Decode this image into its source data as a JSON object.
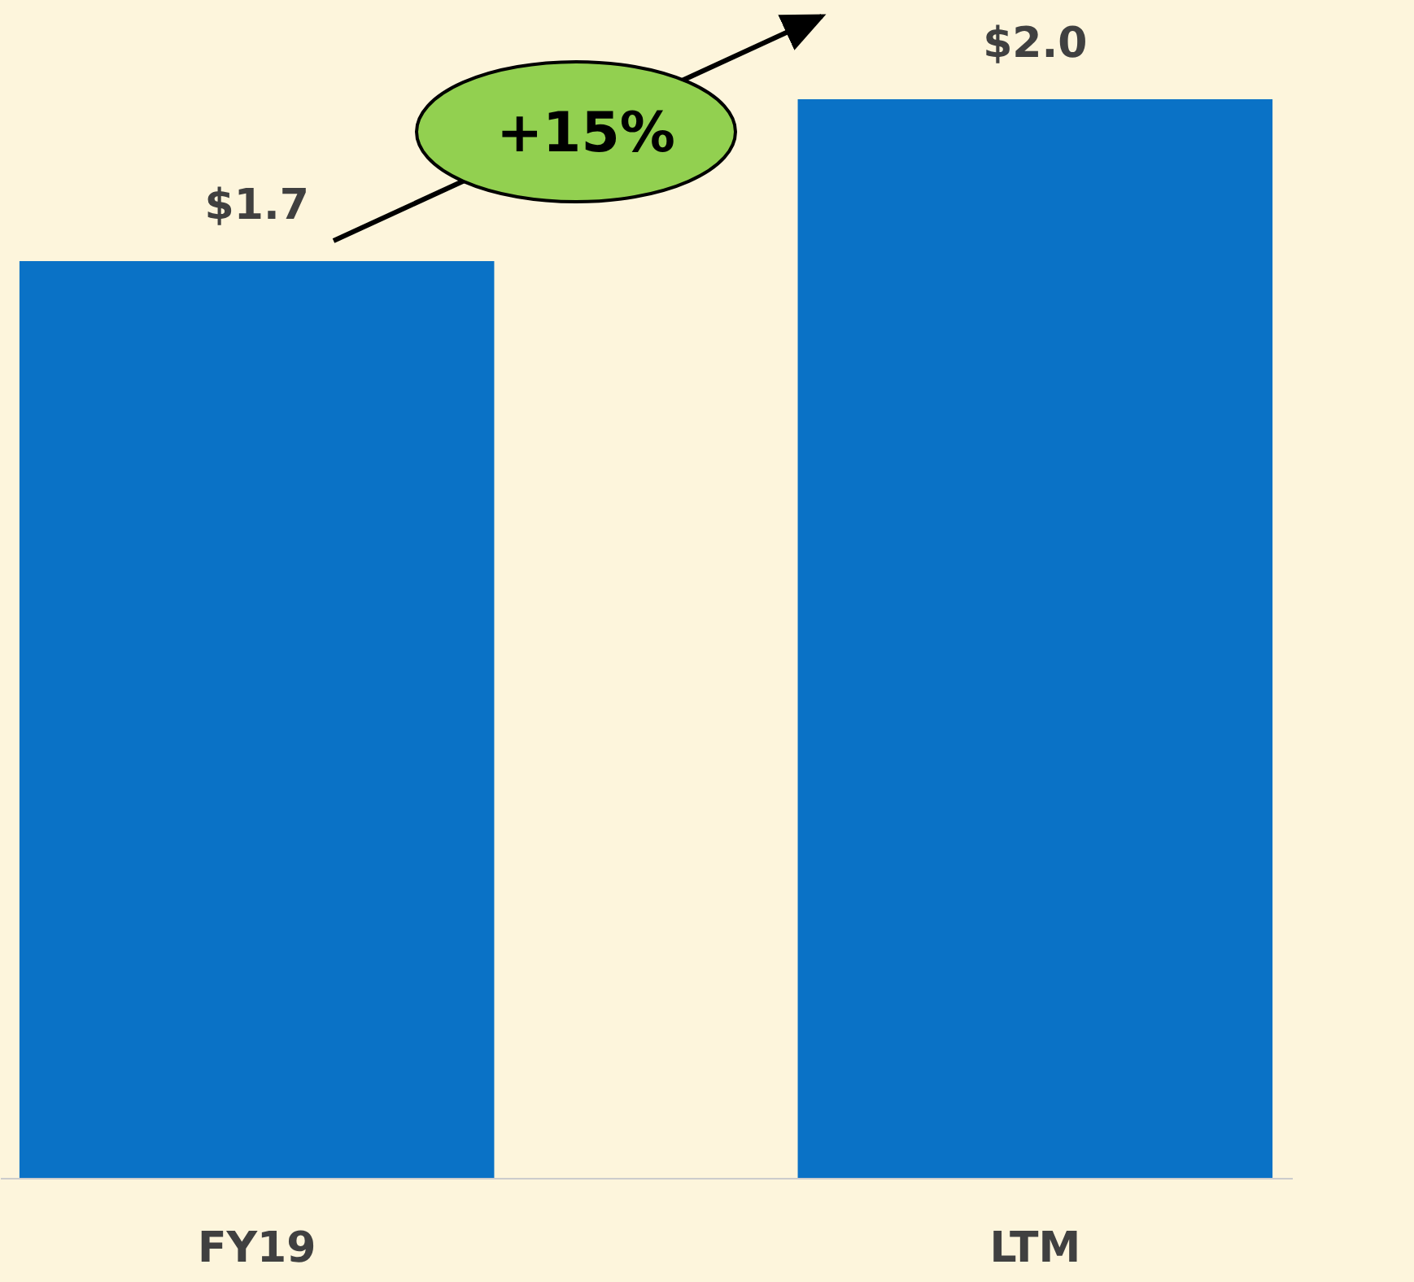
{
  "chart_data": {
    "type": "bar",
    "categories": [
      "FY19",
      "LTM"
    ],
    "values": [
      1.7,
      2.0
    ],
    "value_labels": [
      "$1.7",
      "$2.0"
    ],
    "color": "#0a72c6",
    "annotations": [
      "+15%"
    ]
  }
}
